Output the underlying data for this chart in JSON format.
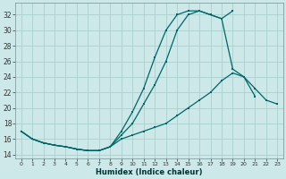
{
  "xlabel": "Humidex (Indice chaleur)",
  "bg_color": "#cce8e8",
  "grid_color": "#aad0d0",
  "line_color": "#006666",
  "xlim": [
    -0.5,
    23.5
  ],
  "ylim": [
    13.5,
    33.5
  ],
  "yticks": [
    14,
    16,
    18,
    20,
    22,
    24,
    26,
    28,
    30,
    32
  ],
  "xticks": [
    0,
    1,
    2,
    3,
    4,
    5,
    6,
    7,
    8,
    9,
    10,
    11,
    12,
    13,
    14,
    15,
    16,
    17,
    18,
    19,
    20,
    21,
    22,
    23
  ],
  "curve_top_x": [
    0,
    1,
    2,
    3,
    4,
    5,
    6,
    7,
    8,
    9,
    10,
    11,
    12,
    13,
    14,
    15,
    16,
    17,
    18,
    19
  ],
  "curve_top_y": [
    17.0,
    16.0,
    15.5,
    15.2,
    15.0,
    14.7,
    14.5,
    14.5,
    15.0,
    17.0,
    19.5,
    22.5,
    26.5,
    30.0,
    32.0,
    32.5,
    32.5,
    32.0,
    31.5,
    32.5
  ],
  "curve_mid_x": [
    0,
    1,
    2,
    3,
    4,
    5,
    6,
    7,
    8,
    9,
    10,
    11,
    12,
    13,
    14,
    15,
    16,
    17,
    18,
    19,
    20,
    21
  ],
  "curve_mid_y": [
    17.0,
    16.0,
    15.5,
    15.2,
    15.0,
    14.7,
    14.5,
    14.5,
    15.0,
    16.5,
    18.0,
    20.5,
    23.0,
    26.0,
    30.0,
    32.0,
    32.5,
    32.0,
    31.5,
    25.0,
    24.0,
    21.5
  ],
  "curve_bot_x": [
    0,
    1,
    2,
    3,
    4,
    5,
    6,
    7,
    8,
    9,
    10,
    11,
    12,
    13,
    14,
    15,
    16,
    17,
    18,
    19,
    20,
    21,
    22,
    23
  ],
  "curve_bot_y": [
    17.0,
    16.0,
    15.5,
    15.2,
    15.0,
    14.7,
    14.5,
    14.5,
    15.0,
    16.0,
    16.5,
    17.0,
    17.5,
    18.0,
    19.0,
    20.0,
    21.0,
    22.0,
    23.5,
    24.5,
    24.0,
    22.5,
    21.0,
    20.5
  ]
}
